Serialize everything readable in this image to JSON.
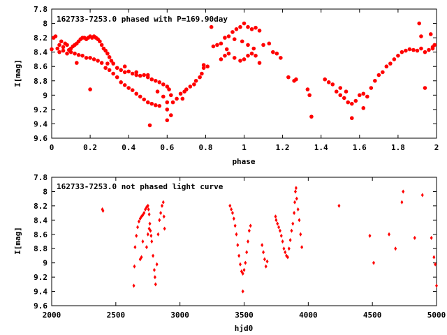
{
  "chart_data": [
    {
      "type": "scatter",
      "title": "162733-7253.0 phased with P=169.90day",
      "xlabel": "phase",
      "ylabel": "I[mag]",
      "xlim": [
        0,
        2
      ],
      "ylim": [
        9.6,
        7.8
      ],
      "y_inverted": true,
      "x_ticks": [
        "0",
        "0.2",
        "0.4",
        "0.6",
        "0.8",
        "1",
        "1.2",
        "1.4",
        "1.6",
        "1.8",
        "2"
      ],
      "y_ticks": [
        "7.8",
        "8",
        "8.2",
        "8.4",
        "8.6",
        "8.8",
        "9",
        "9.2",
        "9.4",
        "9.6"
      ],
      "marker_color": "#ff0000",
      "marker": "filled-circle",
      "grid": false,
      "points": [
        [
          0.0,
          8.36
        ],
        [
          0.01,
          8.2
        ],
        [
          0.02,
          8.18
        ],
        [
          0.03,
          8.35
        ],
        [
          0.04,
          8.3
        ],
        [
          0.05,
          8.25
        ],
        [
          0.06,
          8.33
        ],
        [
          0.07,
          8.28
        ],
        [
          0.08,
          8.3
        ],
        [
          0.09,
          8.37
        ],
        [
          0.1,
          8.35
        ],
        [
          0.11,
          8.32
        ],
        [
          0.12,
          8.3
        ],
        [
          0.13,
          8.28
        ],
        [
          0.14,
          8.25
        ],
        [
          0.15,
          8.22
        ],
        [
          0.16,
          8.2
        ],
        [
          0.17,
          8.2
        ],
        [
          0.18,
          8.22
        ],
        [
          0.19,
          8.2
        ],
        [
          0.2,
          8.18
        ],
        [
          0.21,
          8.2
        ],
        [
          0.22,
          8.18
        ],
        [
          0.23,
          8.2
        ],
        [
          0.24,
          8.22
        ],
        [
          0.25,
          8.25
        ],
        [
          0.26,
          8.3
        ],
        [
          0.27,
          8.35
        ],
        [
          0.28,
          8.38
        ],
        [
          0.29,
          8.42
        ],
        [
          0.3,
          8.47
        ],
        [
          0.31,
          8.52
        ],
        [
          0.32,
          8.56
        ],
        [
          0.34,
          8.62
        ],
        [
          0.36,
          8.65
        ],
        [
          0.38,
          8.68
        ],
        [
          0.4,
          8.67
        ],
        [
          0.42,
          8.7
        ],
        [
          0.44,
          8.72
        ],
        [
          0.46,
          8.73
        ],
        [
          0.48,
          8.72
        ],
        [
          0.5,
          8.75
        ],
        [
          0.52,
          8.78
        ],
        [
          0.54,
          8.8
        ],
        [
          0.56,
          8.82
        ],
        [
          0.58,
          8.85
        ],
        [
          0.04,
          8.4
        ],
        [
          0.06,
          8.38
        ],
        [
          0.08,
          8.42
        ],
        [
          0.1,
          8.4
        ],
        [
          0.12,
          8.42
        ],
        [
          0.14,
          8.44
        ],
        [
          0.16,
          8.45
        ],
        [
          0.18,
          8.48
        ],
        [
          0.2,
          8.48
        ],
        [
          0.22,
          8.5
        ],
        [
          0.24,
          8.52
        ],
        [
          0.26,
          8.55
        ],
        [
          0.28,
          8.62
        ],
        [
          0.3,
          8.65
        ],
        [
          0.32,
          8.7
        ],
        [
          0.34,
          8.75
        ],
        [
          0.36,
          8.82
        ],
        [
          0.38,
          8.86
        ],
        [
          0.4,
          8.9
        ],
        [
          0.42,
          8.93
        ],
        [
          0.44,
          8.98
        ],
        [
          0.46,
          9.02
        ],
        [
          0.48,
          9.06
        ],
        [
          0.5,
          9.1
        ],
        [
          0.52,
          9.12
        ],
        [
          0.54,
          9.14
        ],
        [
          0.56,
          9.15
        ],
        [
          0.13,
          8.55
        ],
        [
          0.2,
          8.92
        ],
        [
          0.29,
          8.56
        ],
        [
          0.38,
          8.6
        ],
        [
          0.44,
          8.68
        ],
        [
          0.5,
          8.72
        ],
        [
          0.51,
          9.42
        ],
        [
          0.55,
          8.95
        ],
        [
          0.58,
          9.02
        ],
        [
          0.6,
          9.1
        ],
        [
          0.6,
          8.88
        ],
        [
          0.61,
          8.92
        ],
        [
          0.62,
          9.0
        ],
        [
          0.6,
          9.2
        ],
        [
          0.6,
          9.35
        ],
        [
          0.62,
          9.28
        ],
        [
          0.63,
          9.1
        ],
        [
          0.65,
          9.05
        ],
        [
          0.67,
          8.98
        ],
        [
          0.68,
          9.05
        ],
        [
          0.69,
          8.95
        ],
        [
          0.7,
          8.92
        ],
        [
          0.72,
          8.88
        ],
        [
          0.74,
          8.85
        ],
        [
          0.75,
          8.8
        ],
        [
          0.77,
          8.75
        ],
        [
          0.78,
          8.7
        ],
        [
          0.79,
          8.62
        ],
        [
          0.79,
          8.58
        ],
        [
          0.81,
          8.6
        ],
        [
          0.83,
          8.05
        ],
        [
          0.84,
          8.32
        ],
        [
          0.86,
          8.3
        ],
        [
          0.88,
          8.28
        ],
        [
          0.9,
          8.2
        ],
        [
          0.92,
          8.18
        ],
        [
          0.94,
          8.12
        ],
        [
          0.96,
          8.08
        ],
        [
          0.98,
          8.05
        ],
        [
          1.0,
          8.0
        ],
        [
          1.02,
          8.05
        ],
        [
          1.04,
          8.08
        ],
        [
          1.06,
          8.06
        ],
        [
          1.08,
          8.1
        ],
        [
          0.88,
          8.5
        ],
        [
          0.9,
          8.45
        ],
        [
          0.92,
          8.42
        ],
        [
          0.95,
          8.48
        ],
        [
          0.98,
          8.52
        ],
        [
          1.0,
          8.5
        ],
        [
          1.02,
          8.45
        ],
        [
          1.04,
          8.42
        ],
        [
          1.06,
          8.45
        ],
        [
          1.08,
          8.55
        ],
        [
          0.91,
          8.36
        ],
        [
          0.95,
          8.22
        ],
        [
          0.99,
          8.25
        ],
        [
          1.02,
          8.3
        ],
        [
          1.05,
          8.35
        ],
        [
          1.1,
          8.3
        ],
        [
          1.13,
          8.28
        ],
        [
          1.15,
          8.4
        ],
        [
          1.17,
          8.42
        ],
        [
          1.19,
          8.48
        ],
        [
          1.23,
          8.75
        ],
        [
          1.26,
          8.8
        ],
        [
          1.27,
          8.78
        ],
        [
          1.33,
          8.92
        ],
        [
          1.34,
          9.0
        ],
        [
          1.35,
          9.3
        ],
        [
          1.42,
          8.78
        ],
        [
          1.44,
          8.82
        ],
        [
          1.46,
          8.85
        ],
        [
          1.48,
          8.95
        ],
        [
          1.5,
          9.0
        ],
        [
          1.52,
          9.04
        ],
        [
          1.54,
          9.1
        ],
        [
          1.56,
          9.12
        ],
        [
          1.58,
          9.08
        ],
        [
          1.5,
          8.9
        ],
        [
          1.53,
          8.95
        ],
        [
          1.56,
          9.32
        ],
        [
          1.6,
          9.0
        ],
        [
          1.62,
          8.98
        ],
        [
          1.64,
          9.02
        ],
        [
          1.62,
          9.18
        ],
        [
          1.66,
          8.9
        ],
        [
          1.68,
          8.8
        ],
        [
          1.7,
          8.72
        ],
        [
          1.72,
          8.68
        ],
        [
          1.74,
          8.6
        ],
        [
          1.76,
          8.56
        ],
        [
          1.78,
          8.5
        ],
        [
          1.8,
          8.45
        ],
        [
          1.82,
          8.4
        ],
        [
          1.84,
          8.38
        ],
        [
          1.86,
          8.36
        ],
        [
          1.88,
          8.37
        ],
        [
          1.9,
          8.38
        ],
        [
          1.92,
          8.35
        ],
        [
          1.94,
          8.4
        ],
        [
          1.96,
          8.37
        ],
        [
          1.98,
          8.33
        ],
        [
          1.99,
          8.3
        ],
        [
          1.91,
          8.0
        ],
        [
          1.92,
          8.18
        ],
        [
          1.94,
          8.9
        ],
        [
          1.97,
          8.15
        ],
        [
          1.98,
          8.35
        ]
      ]
    },
    {
      "type": "scatter",
      "title": "162733-7253.0 not phased light curve",
      "xlabel": "hjd0",
      "ylabel": "I[mag]",
      "xlim": [
        2000,
        5000
      ],
      "ylim": [
        9.6,
        7.8
      ],
      "y_inverted": true,
      "x_ticks": [
        "2000",
        "2500",
        "3000",
        "3500",
        "4000",
        "4500",
        "5000"
      ],
      "y_ticks": [
        "7.8",
        "8",
        "8.2",
        "8.4",
        "8.6",
        "8.8",
        "9",
        "9.2",
        "9.4",
        "9.6"
      ],
      "marker_color": "#ff0000",
      "marker": "small-diamond",
      "grid": false,
      "points": [
        [
          2395,
          8.25
        ],
        [
          2400,
          8.27
        ],
        [
          2640,
          9.32
        ],
        [
          2645,
          9.05
        ],
        [
          2650,
          8.78
        ],
        [
          2660,
          8.62
        ],
        [
          2670,
          8.5
        ],
        [
          2680,
          8.42
        ],
        [
          2690,
          8.38
        ],
        [
          2700,
          8.35
        ],
        [
          2710,
          8.33
        ],
        [
          2720,
          8.3
        ],
        [
          2730,
          8.25
        ],
        [
          2740,
          8.22
        ],
        [
          2750,
          8.2
        ],
        [
          2755,
          8.25
        ],
        [
          2760,
          8.32
        ],
        [
          2765,
          8.45
        ],
        [
          2770,
          8.55
        ],
        [
          2775,
          8.62
        ],
        [
          2780,
          8.7
        ],
        [
          2790,
          8.9
        ],
        [
          2800,
          9.1
        ],
        [
          2805,
          9.2
        ],
        [
          2810,
          9.3
        ],
        [
          2700,
          8.92
        ],
        [
          2710,
          8.7
        ],
        [
          2690,
          8.95
        ],
        [
          2740,
          8.78
        ],
        [
          2750,
          8.6
        ],
        [
          2760,
          8.52
        ],
        [
          2820,
          9.02
        ],
        [
          2830,
          8.6
        ],
        [
          2840,
          8.4
        ],
        [
          2850,
          8.3
        ],
        [
          2860,
          8.2
        ],
        [
          2870,
          8.15
        ],
        [
          2875,
          8.35
        ],
        [
          2880,
          8.52
        ],
        [
          3390,
          8.2
        ],
        [
          3400,
          8.25
        ],
        [
          3410,
          8.3
        ],
        [
          3420,
          8.38
        ],
        [
          3430,
          8.48
        ],
        [
          3440,
          8.6
        ],
        [
          3450,
          8.75
        ],
        [
          3460,
          8.9
        ],
        [
          3470,
          9.02
        ],
        [
          3480,
          9.12
        ],
        [
          3490,
          9.15
        ],
        [
          3500,
          9.1
        ],
        [
          3510,
          9.0
        ],
        [
          3520,
          8.85
        ],
        [
          3530,
          8.7
        ],
        [
          3540,
          8.55
        ],
        [
          3550,
          8.48
        ],
        [
          3490,
          9.4
        ],
        [
          3640,
          8.75
        ],
        [
          3650,
          8.85
        ],
        [
          3660,
          8.95
        ],
        [
          3670,
          9.05
        ],
        [
          3680,
          8.98
        ],
        [
          3745,
          8.35
        ],
        [
          3750,
          8.4
        ],
        [
          3760,
          8.45
        ],
        [
          3770,
          8.5
        ],
        [
          3780,
          8.55
        ],
        [
          3790,
          8.62
        ],
        [
          3800,
          8.7
        ],
        [
          3810,
          8.8
        ],
        [
          3820,
          8.85
        ],
        [
          3830,
          8.9
        ],
        [
          3840,
          8.92
        ],
        [
          3850,
          8.8
        ],
        [
          3860,
          8.68
        ],
        [
          3870,
          8.55
        ],
        [
          3880,
          8.45
        ],
        [
          3890,
          8.3
        ],
        [
          3895,
          8.15
        ],
        [
          3900,
          8.0
        ],
        [
          3905,
          7.95
        ],
        [
          3910,
          8.1
        ],
        [
          3920,
          8.25
        ],
        [
          3930,
          8.4
        ],
        [
          3940,
          8.6
        ],
        [
          3950,
          8.78
        ],
        [
          4240,
          8.2
        ],
        [
          4480,
          8.62
        ],
        [
          4510,
          9.0
        ],
        [
          4630,
          8.6
        ],
        [
          4680,
          8.8
        ],
        [
          4730,
          8.15
        ],
        [
          4740,
          8.0
        ],
        [
          4890,
          8.05
        ],
        [
          4830,
          8.65
        ],
        [
          4960,
          8.65
        ],
        [
          4980,
          8.92
        ],
        [
          4990,
          9.02
        ],
        [
          5000,
          9.32
        ]
      ]
    }
  ]
}
